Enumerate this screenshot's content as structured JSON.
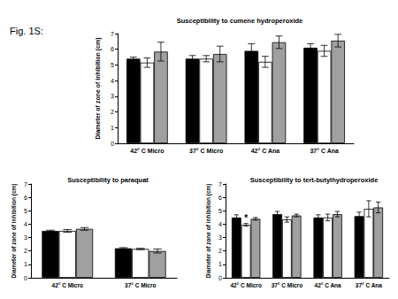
{
  "figure_label": "Fig. 1S:",
  "chart_data": [
    {
      "type": "bar",
      "title": "Susceptibility to cumene hydroperoxide",
      "y_label": "Diameter of zone of inhibition (cm)",
      "categories": [
        "42° C Micro",
        "37° C Micro",
        "42° C Ana",
        "37° C Ana"
      ],
      "series": [
        {
          "color": "#000000",
          "values": [
            5.4,
            5.4,
            5.9,
            6.1
          ],
          "errors": [
            0.1,
            0.2,
            0.45,
            0.25
          ]
        },
        {
          "color": "#ffffff",
          "values": [
            5.15,
            5.4,
            5.2,
            5.9
          ],
          "errors": [
            0.3,
            0.2,
            0.35,
            0.35
          ]
        },
        {
          "color": "#a0a0a0",
          "values": [
            5.85,
            5.7,
            6.45,
            6.55
          ],
          "errors": [
            0.6,
            0.5,
            0.4,
            0.4
          ]
        }
      ],
      "ylim": [
        0,
        7
      ],
      "yticks": [
        0,
        1,
        2,
        3,
        4,
        5,
        6,
        7
      ],
      "grid": false
    },
    {
      "type": "bar",
      "title": "Susceptibility to paraquat",
      "y_label": "Diameter of zone of inhibition (cm)",
      "categories": [
        "42° C Micro",
        "37° C Micro"
      ],
      "series": [
        {
          "color": "#000000",
          "values": [
            3.5,
            2.2
          ],
          "errors": [
            0.05,
            0.05
          ]
        },
        {
          "color": "#ffffff",
          "values": [
            3.5,
            2.15
          ],
          "errors": [
            0.1,
            0.05
          ]
        },
        {
          "color": "#a0a0a0",
          "values": [
            3.65,
            2.0
          ],
          "errors": [
            0.1,
            0.15
          ]
        }
      ],
      "ylim": [
        0,
        7
      ],
      "yticks": [
        0,
        1,
        2,
        3,
        4,
        5,
        6,
        7
      ],
      "grid": false
    },
    {
      "type": "bar",
      "title": "Susceptibility to tert-butylhydroperoxide",
      "y_label": "Diameter of zone of inhibition (cm)",
      "categories": [
        "42° C Micro",
        "37° C Micro",
        "42° C Ana",
        "37° C Ana"
      ],
      "series": [
        {
          "color": "#000000",
          "values": [
            4.5,
            4.75,
            4.5,
            4.6
          ],
          "errors": [
            0.2,
            0.2,
            0.2,
            0.3
          ]
        },
        {
          "color": "#ffffff",
          "values": [
            3.95,
            4.35,
            4.5,
            5.15
          ],
          "errors": [
            0.1,
            0.2,
            0.25,
            0.6
          ]
        },
        {
          "color": "#a0a0a0",
          "values": [
            4.4,
            4.65,
            4.75,
            5.25
          ],
          "errors": [
            0.1,
            0.1,
            0.2,
            0.4
          ]
        }
      ],
      "annotations": [
        {
          "text": "*",
          "category": "42° C Micro",
          "series": 1
        }
      ],
      "ylim": [
        0,
        7
      ],
      "yticks": [
        0,
        1,
        2,
        3,
        4,
        5,
        6,
        7
      ],
      "grid": false
    }
  ]
}
